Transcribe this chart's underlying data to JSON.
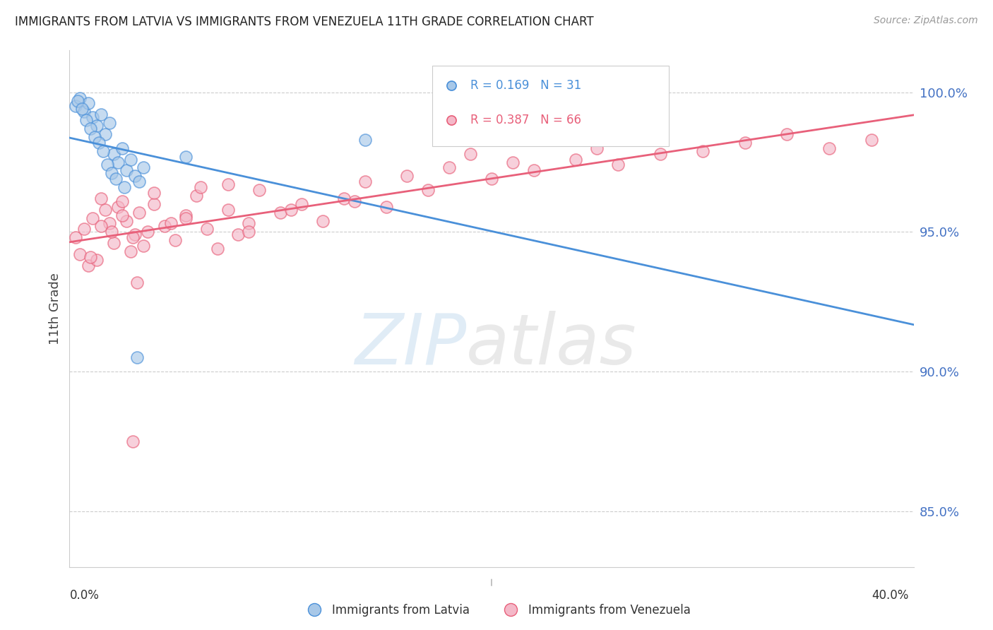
{
  "title": "IMMIGRANTS FROM LATVIA VS IMMIGRANTS FROM VENEZUELA 11TH GRADE CORRELATION CHART",
  "source": "Source: ZipAtlas.com",
  "ylabel": "11th Grade",
  "watermark_zip": "ZIP",
  "watermark_atlas": "atlas",
  "latvia_color": "#a8c8e8",
  "venezuela_color": "#f4b8c8",
  "trend_latvia_color": "#4a90d9",
  "trend_venezuela_color": "#e8607a",
  "right_ytick_color": "#4472c4",
  "grid_color": "#cccccc",
  "background_color": "#ffffff",
  "right_yticks": [
    85.0,
    90.0,
    95.0,
    100.0
  ],
  "x_min": 0.0,
  "x_max": 40.0,
  "y_min": 83.0,
  "y_max": 101.5,
  "legend_R_latvia": "R = 0.169",
  "legend_N_latvia": "N = 31",
  "legend_R_venezuela": "R = 0.387",
  "legend_N_venezuela": "N = 66",
  "latvia_x": [
    0.3,
    0.5,
    0.7,
    0.9,
    1.1,
    1.3,
    1.5,
    1.7,
    1.9,
    2.1,
    2.3,
    2.5,
    2.7,
    2.9,
    3.1,
    3.3,
    0.4,
    0.6,
    0.8,
    1.0,
    1.2,
    1.4,
    1.6,
    1.8,
    2.0,
    2.2,
    2.6,
    3.5,
    5.5,
    14.0,
    3.2
  ],
  "latvia_y": [
    99.5,
    99.8,
    99.3,
    99.6,
    99.1,
    98.8,
    99.2,
    98.5,
    98.9,
    97.8,
    97.5,
    98.0,
    97.2,
    97.6,
    97.0,
    96.8,
    99.7,
    99.4,
    99.0,
    98.7,
    98.4,
    98.2,
    97.9,
    97.4,
    97.1,
    96.9,
    96.6,
    97.3,
    97.7,
    98.3,
    90.5
  ],
  "venezuela_x": [
    0.3,
    0.5,
    0.7,
    0.9,
    1.1,
    1.3,
    1.5,
    1.7,
    1.9,
    2.1,
    2.3,
    2.5,
    2.7,
    2.9,
    3.1,
    3.3,
    3.5,
    3.7,
    4.0,
    4.5,
    5.0,
    5.5,
    6.0,
    6.5,
    7.0,
    7.5,
    8.0,
    8.5,
    9.0,
    10.0,
    11.0,
    12.0,
    13.0,
    14.0,
    15.0,
    16.0,
    17.0,
    18.0,
    19.0,
    20.0,
    21.0,
    22.0,
    24.0,
    25.0,
    26.0,
    28.0,
    30.0,
    32.0,
    34.0,
    36.0,
    38.0,
    1.0,
    1.5,
    2.0,
    2.5,
    3.0,
    4.0,
    5.5,
    7.5,
    10.5,
    13.5,
    3.2,
    4.8,
    6.2,
    8.5,
    3.0
  ],
  "venezuela_y": [
    94.8,
    94.2,
    95.1,
    93.8,
    95.5,
    94.0,
    96.2,
    95.8,
    95.3,
    94.6,
    95.9,
    96.1,
    95.4,
    94.3,
    94.9,
    95.7,
    94.5,
    95.0,
    96.0,
    95.2,
    94.7,
    95.6,
    96.3,
    95.1,
    94.4,
    95.8,
    94.9,
    95.3,
    96.5,
    95.7,
    96.0,
    95.4,
    96.2,
    96.8,
    95.9,
    97.0,
    96.5,
    97.3,
    97.8,
    96.9,
    97.5,
    97.2,
    97.6,
    98.0,
    97.4,
    97.8,
    97.9,
    98.2,
    98.5,
    98.0,
    98.3,
    94.1,
    95.2,
    95.0,
    95.6,
    94.8,
    96.4,
    95.5,
    96.7,
    95.8,
    96.1,
    93.2,
    95.3,
    96.6,
    95.0,
    87.5
  ]
}
